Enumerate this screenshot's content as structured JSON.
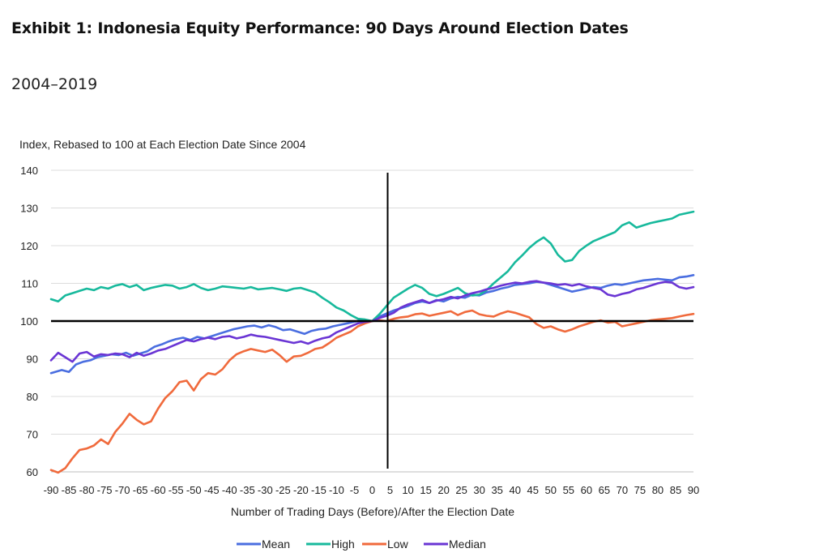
{
  "header": {
    "title": "Exhibit 1: Indonesia Equity Performance: 90 Days Around Election Dates",
    "subtitle": "2004–2019"
  },
  "chart_data": {
    "type": "line",
    "ylabel": "Index, Rebased to 100 at Each Election Date Since 2004",
    "xlabel": "Number of Trading Days (Before)/After the Election Date",
    "ylim": [
      60,
      140
    ],
    "xlim": [
      -90,
      90
    ],
    "y_ticks": [
      60,
      70,
      80,
      90,
      100,
      110,
      120,
      130,
      140
    ],
    "x_ticks": [
      -90,
      -85,
      -80,
      -75,
      -70,
      -65,
      -60,
      -55,
      -50,
      -45,
      -40,
      -35,
      -30,
      -25,
      -20,
      -15,
      -10,
      -5,
      0,
      5,
      10,
      15,
      20,
      25,
      30,
      35,
      40,
      45,
      50,
      55,
      60,
      65,
      70,
      75,
      80,
      85,
      90
    ],
    "grid": "horizontal",
    "reference_lines": {
      "y": 100,
      "x": 0
    },
    "legend": "bottom",
    "series": [
      {
        "name": "Mean",
        "color": "#4a6ee0",
        "x": [
          -90,
          -87,
          -85,
          -83,
          -81,
          -79,
          -77,
          -75,
          -73,
          -71,
          -69,
          -67,
          -65,
          -63,
          -61,
          -59,
          -57,
          -55,
          -53,
          -51,
          -49,
          -47,
          -45,
          -43,
          -41,
          -39,
          -37,
          -35,
          -33,
          -31,
          -29,
          -27,
          -25,
          -23,
          -21,
          -19,
          -17,
          -15,
          -13,
          -11,
          -9,
          -7,
          -5,
          -3,
          -1,
          0,
          2,
          4,
          6,
          8,
          10,
          12,
          14,
          16,
          18,
          20,
          22,
          24,
          26,
          28,
          30,
          32,
          34,
          36,
          38,
          40,
          42,
          44,
          46,
          48,
          50,
          52,
          54,
          56,
          58,
          60,
          62,
          64,
          66,
          68,
          70,
          72,
          74,
          76,
          78,
          80,
          82,
          84,
          86,
          88,
          90
        ],
        "values": [
          86.2,
          87.0,
          86.5,
          88.5,
          89.2,
          89.6,
          90.4,
          90.8,
          91.2,
          91.0,
          91.6,
          90.8,
          91.4,
          92.0,
          93.2,
          93.8,
          94.6,
          95.2,
          95.6,
          95.0,
          95.8,
          95.4,
          96.0,
          96.6,
          97.2,
          97.8,
          98.2,
          98.6,
          98.8,
          98.3,
          98.9,
          98.4,
          97.6,
          97.8,
          97.2,
          96.6,
          97.4,
          97.8,
          98.0,
          98.6,
          99.0,
          99.4,
          99.8,
          100.2,
          100.0,
          100.0,
          101.2,
          102.0,
          102.8,
          103.4,
          104.0,
          104.8,
          105.2,
          104.8,
          105.6,
          105.2,
          106.0,
          106.4,
          106.2,
          107.0,
          106.8,
          107.6,
          108.0,
          108.6,
          109.0,
          109.6,
          109.8,
          110.0,
          110.4,
          110.2,
          109.6,
          109.0,
          108.4,
          107.8,
          108.2,
          108.6,
          109.0,
          108.8,
          109.4,
          109.8,
          109.6,
          110.0,
          110.4,
          110.8,
          111.0,
          111.2,
          111.0,
          110.8,
          111.6,
          111.8,
          112.2
        ]
      },
      {
        "name": "High",
        "color": "#17b99c",
        "x": [
          -90,
          -88,
          -86,
          -84,
          -82,
          -80,
          -78,
          -76,
          -74,
          -72,
          -70,
          -68,
          -66,
          -64,
          -62,
          -60,
          -58,
          -56,
          -54,
          -52,
          -50,
          -48,
          -46,
          -44,
          -42,
          -40,
          -38,
          -36,
          -34,
          -32,
          -30,
          -28,
          -26,
          -24,
          -22,
          -20,
          -18,
          -16,
          -14,
          -12,
          -10,
          -8,
          -6,
          -4,
          -2,
          0,
          2,
          4,
          6,
          8,
          10,
          12,
          14,
          16,
          18,
          20,
          22,
          24,
          26,
          28,
          30,
          32,
          34,
          36,
          38,
          40,
          42,
          44,
          46,
          48,
          50,
          52,
          54,
          56,
          58,
          60,
          62,
          64,
          66,
          68,
          70,
          72,
          74,
          76,
          78,
          80,
          82,
          84,
          86,
          88,
          90
        ],
        "values": [
          105.8,
          105.2,
          106.8,
          107.4,
          108.0,
          108.6,
          108.2,
          109.0,
          108.6,
          109.4,
          109.8,
          109.0,
          109.6,
          108.2,
          108.8,
          109.2,
          109.6,
          109.4,
          108.6,
          109.0,
          109.8,
          108.8,
          108.2,
          108.6,
          109.2,
          109.0,
          108.8,
          108.6,
          109.0,
          108.4,
          108.6,
          108.8,
          108.4,
          108.0,
          108.6,
          108.8,
          108.2,
          107.6,
          106.2,
          105.0,
          103.6,
          102.8,
          101.6,
          100.6,
          100.4,
          100.0,
          101.8,
          104.0,
          106.2,
          107.4,
          108.6,
          109.6,
          108.8,
          107.2,
          106.6,
          107.2,
          108.0,
          108.8,
          107.4,
          106.8,
          107.0,
          108.2,
          110.0,
          111.6,
          113.2,
          115.6,
          117.4,
          119.4,
          121.0,
          122.2,
          120.6,
          117.6,
          115.8,
          116.2,
          118.6,
          120.0,
          121.2,
          122.0,
          122.8,
          123.6,
          125.4,
          126.2,
          124.8,
          125.4,
          126.0,
          126.4,
          126.8,
          127.2,
          128.2,
          128.6,
          129.0
        ]
      },
      {
        "name": "Low",
        "color": "#f06a3c",
        "x": [
          -90,
          -88,
          -86,
          -84,
          -82,
          -80,
          -78,
          -76,
          -74,
          -72,
          -70,
          -68,
          -66,
          -64,
          -62,
          -60,
          -58,
          -56,
          -54,
          -52,
          -50,
          -48,
          -46,
          -44,
          -42,
          -40,
          -38,
          -36,
          -34,
          -32,
          -30,
          -28,
          -26,
          -24,
          -22,
          -20,
          -18,
          -16,
          -14,
          -12,
          -10,
          -8,
          -6,
          -4,
          -2,
          0,
          2,
          4,
          6,
          8,
          10,
          12,
          14,
          16,
          18,
          20,
          22,
          24,
          26,
          28,
          30,
          32,
          34,
          36,
          38,
          40,
          42,
          44,
          46,
          48,
          50,
          52,
          54,
          56,
          58,
          60,
          62,
          64,
          66,
          68,
          70,
          72,
          74,
          76,
          78,
          80,
          82,
          84,
          86,
          88,
          90
        ],
        "values": [
          60.5,
          59.8,
          61.0,
          63.6,
          65.8,
          66.2,
          67.0,
          68.6,
          67.4,
          70.6,
          72.8,
          75.4,
          73.8,
          72.6,
          73.4,
          76.8,
          79.6,
          81.4,
          83.8,
          84.2,
          81.6,
          84.6,
          86.2,
          85.8,
          87.2,
          89.6,
          91.2,
          92.0,
          92.6,
          92.2,
          91.8,
          92.4,
          91.0,
          89.2,
          90.6,
          90.8,
          91.6,
          92.6,
          93.0,
          94.2,
          95.6,
          96.4,
          97.2,
          98.6,
          99.4,
          100.0,
          100.2,
          100.0,
          100.6,
          101.0,
          101.2,
          101.8,
          102.0,
          101.4,
          101.8,
          102.2,
          102.6,
          101.6,
          102.4,
          102.8,
          101.8,
          101.4,
          101.2,
          102.0,
          102.6,
          102.2,
          101.6,
          101.0,
          99.2,
          98.2,
          98.6,
          97.8,
          97.2,
          97.8,
          98.6,
          99.2,
          99.8,
          100.2,
          99.6,
          99.8,
          98.6,
          99.0,
          99.4,
          99.8,
          100.2,
          100.4,
          100.6,
          100.8,
          101.2,
          101.6,
          101.9
        ]
      },
      {
        "name": "Median",
        "color": "#6a35d4",
        "x": [
          -90,
          -88,
          -86,
          -84,
          -82,
          -80,
          -78,
          -76,
          -74,
          -72,
          -70,
          -68,
          -66,
          -64,
          -62,
          -60,
          -58,
          -56,
          -54,
          -52,
          -50,
          -48,
          -46,
          -44,
          -42,
          -40,
          -38,
          -36,
          -34,
          -32,
          -30,
          -28,
          -26,
          -24,
          -22,
          -20,
          -18,
          -16,
          -14,
          -12,
          -10,
          -8,
          -6,
          -4,
          -2,
          0,
          2,
          4,
          6,
          8,
          10,
          12,
          14,
          16,
          18,
          20,
          22,
          24,
          26,
          28,
          30,
          32,
          34,
          36,
          38,
          40,
          42,
          44,
          46,
          48,
          50,
          52,
          54,
          56,
          58,
          60,
          62,
          64,
          66,
          68,
          70,
          72,
          74,
          76,
          78,
          80,
          82,
          84,
          86,
          88,
          90
        ],
        "values": [
          89.6,
          91.6,
          90.4,
          89.2,
          91.4,
          91.8,
          90.6,
          91.2,
          91.0,
          91.4,
          91.2,
          90.4,
          91.6,
          90.8,
          91.4,
          92.2,
          92.6,
          93.4,
          94.2,
          95.0,
          94.6,
          95.2,
          95.6,
          95.2,
          95.8,
          96.0,
          95.4,
          95.8,
          96.4,
          96.0,
          95.8,
          95.4,
          95.0,
          94.6,
          94.2,
          94.6,
          94.0,
          94.8,
          95.4,
          95.8,
          97.0,
          97.8,
          98.6,
          99.4,
          99.8,
          100.0,
          100.8,
          101.4,
          102.2,
          103.6,
          104.4,
          105.0,
          105.6,
          104.8,
          105.4,
          105.8,
          106.4,
          106.0,
          106.8,
          107.4,
          107.8,
          108.4,
          108.8,
          109.4,
          109.8,
          110.2,
          110.0,
          110.4,
          110.6,
          110.2,
          110.0,
          109.6,
          109.8,
          109.4,
          109.8,
          109.2,
          108.8,
          108.4,
          107.0,
          106.6,
          107.2,
          107.6,
          108.4,
          108.8,
          109.4,
          110.0,
          110.4,
          110.2,
          109.0,
          108.6,
          109.0
        ]
      }
    ]
  }
}
